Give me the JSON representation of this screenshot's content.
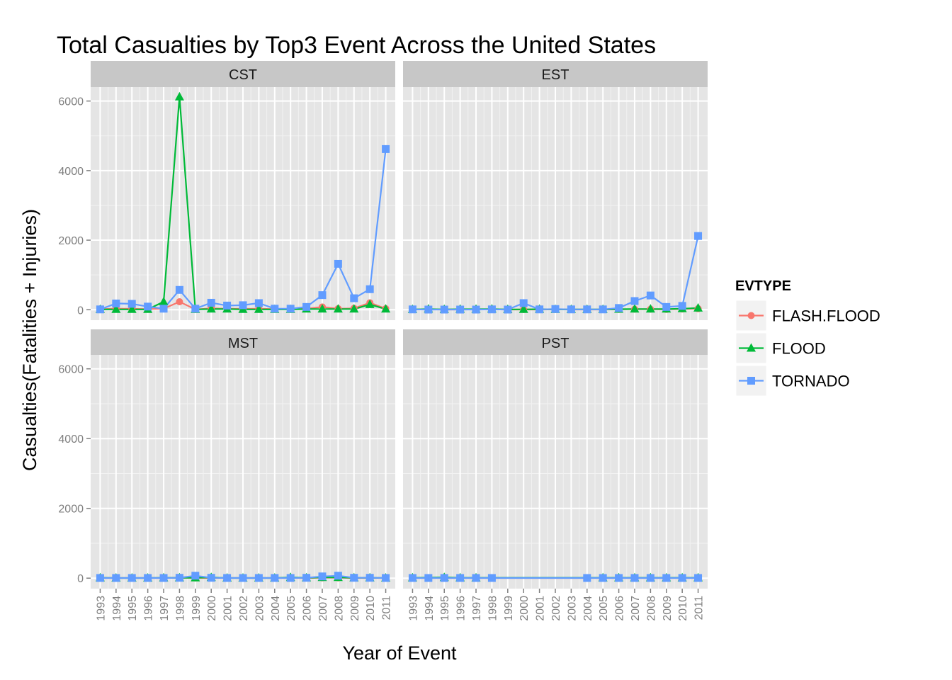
{
  "chart_data": {
    "type": "line",
    "title": "Total Casualties by Top3 Event Across the United States",
    "xlabel": "Year of Event",
    "ylabel": "Casualties(Fatalities + Injuries)",
    "ylim": [
      -300,
      6400
    ],
    "y_ticks": [
      0,
      2000,
      4000,
      6000
    ],
    "y_tick_labels": [
      "0",
      "2000",
      "4000",
      "6000"
    ],
    "x": [
      1993,
      1994,
      1995,
      1996,
      1997,
      1998,
      1999,
      2000,
      2001,
      2002,
      2003,
      2004,
      2005,
      2006,
      2007,
      2008,
      2009,
      2010,
      2011
    ],
    "x_tick_labels": [
      "1993",
      "1994",
      "1995",
      "1996",
      "1997",
      "1998",
      "1999",
      "2000",
      "2001",
      "2002",
      "2003",
      "2004",
      "2005",
      "2006",
      "2007",
      "2008",
      "2009",
      "2010",
      "2011"
    ],
    "grid": true,
    "legend": {
      "title": "EVTYPE",
      "position": "right",
      "entries": [
        {
          "name": "FLASH.FLOOD",
          "color": "#F8766D",
          "shape": "circle"
        },
        {
          "name": "FLOOD",
          "color": "#00BA38",
          "shape": "triangle"
        },
        {
          "name": "TORNADO",
          "color": "#619CFF",
          "shape": "square"
        }
      ]
    },
    "facets": [
      {
        "label": "CST",
        "series": [
          {
            "name": "FLASH.FLOOD",
            "x": [
              1993,
              1994,
              1995,
              1996,
              1997,
              1998,
              1999,
              2000,
              2001,
              2002,
              2003,
              2004,
              2005,
              2006,
              2007,
              2008,
              2009,
              2010,
              2011
            ],
            "y": [
              20,
              30,
              25,
              20,
              30,
              230,
              10,
              40,
              30,
              25,
              25,
              20,
              20,
              30,
              80,
              30,
              40,
              200,
              30
            ]
          },
          {
            "name": "FLOOD",
            "x": [
              1993,
              1994,
              1995,
              1996,
              1997,
              1998,
              1999,
              2000,
              2001,
              2002,
              2003,
              2004,
              2005,
              2006,
              2007,
              2008,
              2009,
              2010,
              2011
            ],
            "y": [
              10,
              10,
              10,
              10,
              230,
              6120,
              10,
              20,
              20,
              10,
              10,
              10,
              10,
              20,
              20,
              20,
              20,
              150,
              20
            ]
          },
          {
            "name": "TORNADO",
            "x": [
              1993,
              1994,
              1995,
              1996,
              1997,
              1998,
              1999,
              2000,
              2001,
              2002,
              2003,
              2004,
              2005,
              2006,
              2007,
              2008,
              2009,
              2010,
              2011
            ],
            "y": [
              10,
              180,
              170,
              90,
              30,
              570,
              30,
              200,
              120,
              130,
              190,
              30,
              30,
              80,
              420,
              1320,
              330,
              590,
              4620
            ]
          }
        ]
      },
      {
        "label": "EST",
        "series": [
          {
            "name": "FLASH.FLOOD",
            "x": [
              1993,
              1994,
              1995,
              1996,
              1997,
              1998,
              1999,
              2000,
              2001,
              2002,
              2003,
              2004,
              2005,
              2006,
              2007,
              2008,
              2009,
              2010,
              2011
            ],
            "y": [
              5,
              10,
              5,
              5,
              10,
              10,
              5,
              5,
              5,
              10,
              5,
              5,
              5,
              10,
              15,
              15,
              10,
              20,
              30
            ]
          },
          {
            "name": "FLOOD",
            "x": [
              1993,
              1994,
              1995,
              1996,
              1997,
              1998,
              1999,
              2000,
              2001,
              2002,
              2003,
              2004,
              2005,
              2006,
              2007,
              2008,
              2009,
              2010,
              2011
            ],
            "y": [
              10,
              20,
              10,
              15,
              15,
              20,
              10,
              10,
              15,
              10,
              10,
              10,
              10,
              15,
              20,
              20,
              20,
              30,
              50
            ]
          },
          {
            "name": "TORNADO",
            "x": [
              1993,
              1994,
              1995,
              1996,
              1997,
              1998,
              1999,
              2000,
              2001,
              2002,
              2003,
              2004,
              2005,
              2006,
              2007,
              2008,
              2009,
              2010,
              2011
            ],
            "y": [
              10,
              5,
              5,
              5,
              5,
              10,
              5,
              190,
              10,
              20,
              10,
              10,
              10,
              50,
              250,
              410,
              80,
              110,
              2120
            ]
          }
        ]
      },
      {
        "label": "MST",
        "series": [
          {
            "name": "FLASH.FLOOD",
            "x": [
              1993,
              1994,
              1995,
              1996,
              1997,
              1998,
              1999,
              2000,
              2001,
              2002,
              2003,
              2004,
              2005,
              2006,
              2007,
              2008,
              2009,
              2010,
              2011
            ],
            "y": [
              5,
              5,
              5,
              5,
              5,
              10,
              5,
              5,
              5,
              5,
              5,
              5,
              5,
              5,
              10,
              10,
              5,
              5,
              5
            ]
          },
          {
            "name": "FLOOD",
            "x": [
              1993,
              1994,
              1995,
              1996,
              1997,
              1998,
              1999,
              2000,
              2001,
              2002,
              2003,
              2004,
              2005,
              2006,
              2007,
              2008,
              2009,
              2010,
              2011
            ],
            "y": [
              10,
              5,
              5,
              5,
              10,
              10,
              10,
              20,
              5,
              5,
              5,
              5,
              20,
              10,
              20,
              20,
              10,
              10,
              5
            ]
          },
          {
            "name": "TORNADO",
            "x": [
              1993,
              1994,
              1995,
              1996,
              1997,
              1998,
              1999,
              2000,
              2001,
              2002,
              2003,
              2004,
              2005,
              2006,
              2007,
              2008,
              2009,
              2010,
              2011
            ],
            "y": [
              5,
              5,
              5,
              5,
              5,
              10,
              70,
              10,
              5,
              5,
              5,
              5,
              5,
              10,
              50,
              70,
              10,
              10,
              5
            ]
          }
        ]
      },
      {
        "label": "PST",
        "series": [
          {
            "name": "FLASH.FLOOD",
            "x": [
              1993,
              1995,
              1996,
              1997,
              2004,
              2005,
              2006,
              2007,
              2008,
              2009,
              2010,
              2011
            ],
            "y": [
              5,
              5,
              5,
              5,
              5,
              5,
              5,
              5,
              5,
              5,
              5,
              5
            ]
          },
          {
            "name": "FLOOD",
            "x": [
              1993,
              1995,
              1996,
              1997,
              2005,
              2006,
              2007,
              2008,
              2009,
              2010,
              2011
            ],
            "y": [
              10,
              20,
              10,
              10,
              10,
              10,
              10,
              10,
              10,
              10,
              10
            ]
          },
          {
            "name": "TORNADO",
            "x": [
              1993,
              1994,
              1995,
              1996,
              1997,
              1998,
              2004,
              2005,
              2006,
              2007,
              2008,
              2009,
              2010,
              2011
            ],
            "y": [
              5,
              5,
              5,
              5,
              5,
              5,
              5,
              5,
              5,
              5,
              5,
              5,
              5,
              5
            ]
          }
        ]
      }
    ]
  }
}
